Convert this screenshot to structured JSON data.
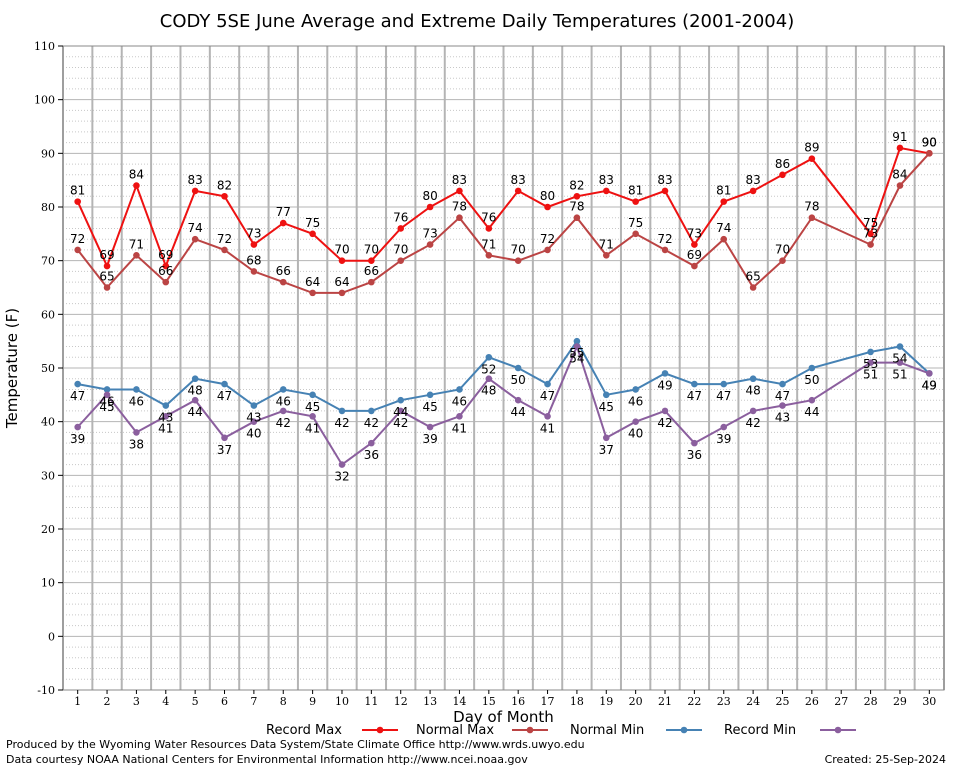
{
  "chart_data": {
    "type": "line",
    "title": "CODY 5SE June Average and Extreme Daily Temperatures (2001-2004)",
    "xlabel": "Day of Month",
    "ylabel": "Temperature (F)",
    "xlim": [
      1,
      30
    ],
    "ylim": [
      -10,
      110
    ],
    "yticks": [
      -10,
      0,
      10,
      20,
      30,
      40,
      50,
      60,
      70,
      80,
      90,
      100,
      110
    ],
    "xticks": [
      1,
      2,
      3,
      4,
      5,
      6,
      7,
      8,
      9,
      10,
      11,
      12,
      13,
      14,
      15,
      16,
      17,
      18,
      19,
      20,
      21,
      22,
      23,
      24,
      25,
      26,
      27,
      28,
      29,
      30
    ],
    "grid": true,
    "legend_position": "bottom",
    "series": [
      {
        "name": "Record Max",
        "color": "#ee1111",
        "label_position": "above",
        "points": [
          [
            1,
            81
          ],
          [
            2,
            69
          ],
          [
            3,
            84
          ],
          [
            4,
            69
          ],
          [
            5,
            83
          ],
          [
            6,
            82
          ],
          [
            7,
            73
          ],
          [
            8,
            77
          ],
          [
            9,
            75
          ],
          [
            10,
            70
          ],
          [
            11,
            70
          ],
          [
            12,
            76
          ],
          [
            13,
            80
          ],
          [
            14,
            83
          ],
          [
            15,
            76
          ],
          [
            16,
            83
          ],
          [
            17,
            80
          ],
          [
            18,
            82
          ],
          [
            19,
            83
          ],
          [
            20,
            81
          ],
          [
            21,
            83
          ],
          [
            22,
            73
          ],
          [
            23,
            81
          ],
          [
            24,
            83
          ],
          [
            25,
            86
          ],
          [
            26,
            89
          ],
          [
            28,
            75
          ],
          [
            29,
            91
          ],
          [
            30,
            90
          ]
        ]
      },
      {
        "name": "Normal Max",
        "color": "#bb4444",
        "label_position": "above",
        "points": [
          [
            1,
            72
          ],
          [
            2,
            65
          ],
          [
            3,
            71
          ],
          [
            4,
            66
          ],
          [
            5,
            74
          ],
          [
            6,
            72
          ],
          [
            7,
            68
          ],
          [
            8,
            66
          ],
          [
            9,
            64
          ],
          [
            10,
            64
          ],
          [
            11,
            66
          ],
          [
            12,
            70
          ],
          [
            13,
            73
          ],
          [
            14,
            78
          ],
          [
            15,
            71
          ],
          [
            16,
            70
          ],
          [
            17,
            72
          ],
          [
            18,
            78
          ],
          [
            19,
            71
          ],
          [
            20,
            75
          ],
          [
            21,
            72
          ],
          [
            22,
            69
          ],
          [
            23,
            74
          ],
          [
            24,
            65
          ],
          [
            25,
            70
          ],
          [
            26,
            78
          ],
          [
            28,
            73
          ],
          [
            29,
            84
          ],
          [
            30,
            90
          ]
        ]
      },
      {
        "name": "Normal Min",
        "color": "#4682b4",
        "label_position": "below",
        "points": [
          [
            1,
            47
          ],
          [
            2,
            46
          ],
          [
            3,
            46
          ],
          [
            4,
            43
          ],
          [
            5,
            48
          ],
          [
            6,
            47
          ],
          [
            7,
            43
          ],
          [
            8,
            46
          ],
          [
            9,
            45
          ],
          [
            10,
            42
          ],
          [
            11,
            42
          ],
          [
            12,
            44
          ],
          [
            13,
            45
          ],
          [
            14,
            46
          ],
          [
            15,
            52
          ],
          [
            16,
            50
          ],
          [
            17,
            47
          ],
          [
            18,
            55
          ],
          [
            19,
            45
          ],
          [
            20,
            46
          ],
          [
            21,
            49
          ],
          [
            22,
            47
          ],
          [
            23,
            47
          ],
          [
            24,
            48
          ],
          [
            25,
            47
          ],
          [
            26,
            50
          ],
          [
            28,
            53
          ],
          [
            29,
            54
          ],
          [
            30,
            49
          ]
        ]
      },
      {
        "name": "Record Min",
        "color": "#8b5f9e",
        "label_position": "below",
        "points": [
          [
            1,
            39
          ],
          [
            2,
            45
          ],
          [
            3,
            38
          ],
          [
            4,
            41
          ],
          [
            5,
            44
          ],
          [
            6,
            37
          ],
          [
            7,
            40
          ],
          [
            8,
            42
          ],
          [
            9,
            41
          ],
          [
            10,
            32
          ],
          [
            11,
            36
          ],
          [
            12,
            42
          ],
          [
            13,
            39
          ],
          [
            14,
            41
          ],
          [
            15,
            48
          ],
          [
            16,
            44
          ],
          [
            17,
            41
          ],
          [
            18,
            54
          ],
          [
            19,
            37
          ],
          [
            20,
            40
          ],
          [
            21,
            42
          ],
          [
            22,
            36
          ],
          [
            23,
            39
          ],
          [
            24,
            42
          ],
          [
            25,
            43
          ],
          [
            26,
            44
          ],
          [
            28,
            51
          ],
          [
            29,
            51
          ],
          [
            30,
            49
          ]
        ]
      }
    ]
  },
  "footer": {
    "producer": "Produced by the Wyoming Water Resources Data System/State Climate Office http://www.wrds.uwyo.edu",
    "courtesy": "Data courtesy NOAA National Centers for Environmental Information http://www.ncei.noaa.gov",
    "created": "Created:  25-Sep-2024"
  }
}
